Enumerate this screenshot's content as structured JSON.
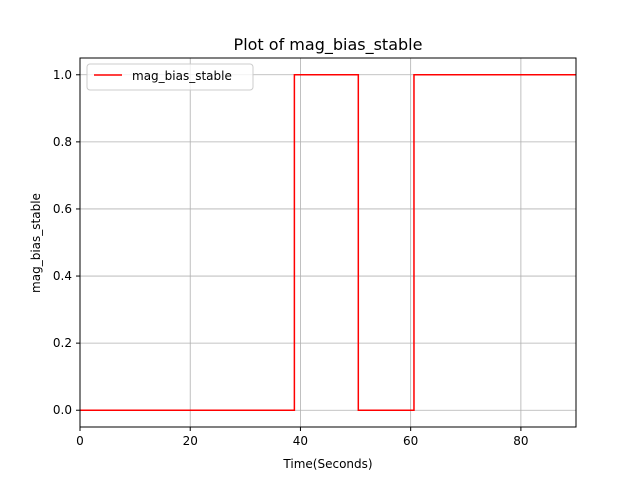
{
  "chart_data": {
    "type": "line",
    "title": "Plot of mag_bias_stable",
    "xlabel": "Time(Seconds)",
    "ylabel": "mag_bias_stable",
    "xlim": [
      0,
      90
    ],
    "ylim": [
      -0.05,
      1.05
    ],
    "x_ticks": [
      0,
      20,
      40,
      60,
      80
    ],
    "x_tick_labels": [
      "0",
      "20",
      "40",
      "60",
      "80"
    ],
    "y_ticks": [
      0.0,
      0.2,
      0.4,
      0.6,
      0.8,
      1.0
    ],
    "y_tick_labels": [
      "0.0",
      "0.2",
      "0.4",
      "0.6",
      "0.8",
      "1.0"
    ],
    "grid": true,
    "legend": {
      "position": "upper-left",
      "entries": [
        "mag_bias_stable"
      ]
    },
    "series": [
      {
        "name": "mag_bias_stable",
        "color": "#ff0000",
        "drawstyle": "step-post",
        "x": [
          0,
          38.9,
          50.5,
          60.6,
          90
        ],
        "y": [
          0,
          1,
          0,
          1,
          1
        ]
      }
    ]
  }
}
